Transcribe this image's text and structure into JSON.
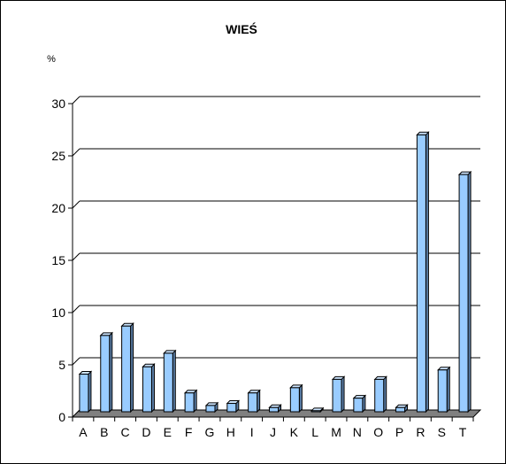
{
  "chart_data": {
    "type": "bar",
    "title": "WIEŚ",
    "ylabel": "%",
    "xlabel": "",
    "ylim": [
      0,
      30
    ],
    "yticks": [
      0,
      5,
      10,
      15,
      20,
      25,
      30
    ],
    "grid": true,
    "categories": [
      "A",
      "B",
      "C",
      "D",
      "E",
      "F",
      "G",
      "H",
      "I",
      "J",
      "K",
      "L",
      "M",
      "N",
      "O",
      "P",
      "R",
      "S",
      "T"
    ],
    "values": [
      3.6,
      7.3,
      8.2,
      4.3,
      5.6,
      1.8,
      0.6,
      0.8,
      1.8,
      0.4,
      2.3,
      0.1,
      3.1,
      1.3,
      3.1,
      0.4,
      26.5,
      4.0,
      22.7
    ],
    "colors": {
      "bar": "#99ccff",
      "bar_side": "#5b7fa8",
      "bar_top": "#cce5ff",
      "floor": "#808080",
      "grid": "#000000"
    }
  }
}
